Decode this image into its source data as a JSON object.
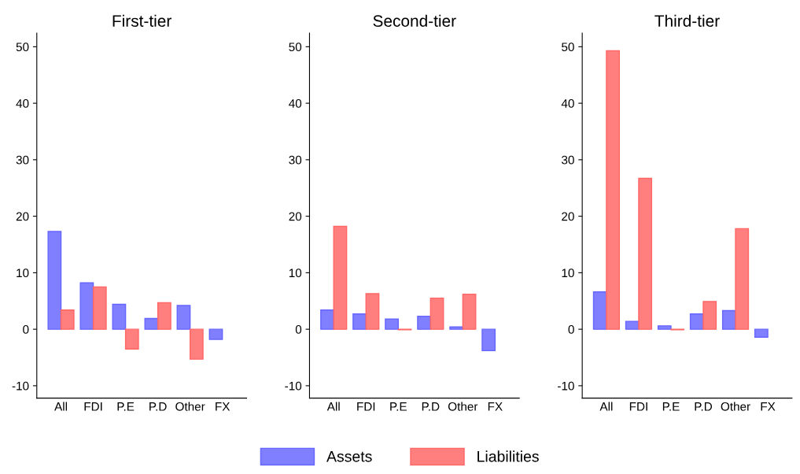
{
  "chart_data": [
    {
      "type": "bar",
      "title": "First-tier",
      "categories": [
        "All",
        "FDI",
        "P.E",
        "P.D",
        "Other",
        "FX"
      ],
      "ylim": [
        -12.2,
        52.4
      ],
      "yticks": [
        -10,
        0,
        10,
        20,
        30,
        40,
        50
      ],
      "legend": "bottom",
      "series": [
        {
          "name": "Assets",
          "color": "#7f7fff",
          "values": [
            17.3,
            8.2,
            4.4,
            1.9,
            4.2,
            -1.8
          ]
        },
        {
          "name": "Liabilities",
          "color": "#ff7f7f",
          "values": [
            3.4,
            7.5,
            -3.5,
            4.7,
            -5.3,
            null
          ]
        }
      ]
    },
    {
      "type": "bar",
      "title": "Second-tier",
      "categories": [
        "All",
        "FDI",
        "P.E",
        "P.D",
        "Other",
        "FX"
      ],
      "ylim": [
        -12.2,
        52.4
      ],
      "yticks": [
        -10,
        0,
        10,
        20,
        30,
        40,
        50
      ],
      "series": [
        {
          "name": "Assets",
          "color": "#7f7fff",
          "values": [
            3.4,
            2.7,
            1.8,
            2.3,
            0.4,
            -3.8
          ]
        },
        {
          "name": "Liabilities",
          "color": "#ff7f7f",
          "values": [
            18.2,
            6.3,
            -0.1,
            5.5,
            6.2,
            null
          ]
        }
      ]
    },
    {
      "type": "bar",
      "title": "Third-tier",
      "categories": [
        "All",
        "FDI",
        "P.E",
        "P.D",
        "Other",
        "FX"
      ],
      "ylim": [
        -12.2,
        52.4
      ],
      "yticks": [
        -10,
        0,
        10,
        20,
        30,
        40,
        50
      ],
      "series": [
        {
          "name": "Assets",
          "color": "#7f7fff",
          "values": [
            6.6,
            1.4,
            0.6,
            2.7,
            3.3,
            -1.4
          ]
        },
        {
          "name": "Liabilities",
          "color": "#ff7f7f",
          "values": [
            49.3,
            26.7,
            -0.1,
            4.9,
            17.8,
            null
          ]
        }
      ]
    }
  ]
}
